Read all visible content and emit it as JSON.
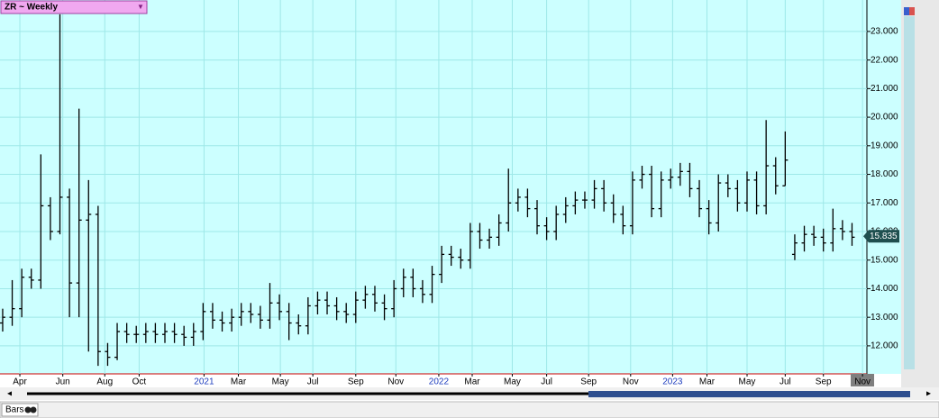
{
  "chart_data": {
    "type": "ohlc",
    "title": "ZR ~ Weekly",
    "x": [
      0,
      1,
      2,
      3,
      4,
      5,
      6,
      7,
      8,
      9,
      10,
      11,
      12,
      13,
      14,
      15,
      16,
      17,
      18,
      19,
      20,
      21,
      22,
      23,
      24,
      25,
      26,
      27,
      28,
      29,
      30,
      31,
      32,
      33,
      34,
      35,
      36,
      37,
      38,
      39,
      40,
      41,
      42,
      43,
      44,
      45,
      46,
      47,
      48,
      49,
      50,
      51,
      52,
      53,
      54,
      55,
      56,
      57,
      58,
      59,
      60,
      61,
      62,
      63,
      64,
      65,
      66,
      67,
      68,
      69,
      70,
      71,
      72,
      73,
      74,
      75,
      76,
      77,
      78,
      79,
      80,
      81,
      82,
      83,
      84,
      85,
      86,
      87,
      88,
      89
    ],
    "open": [
      12.8,
      13.0,
      13.3,
      14.4,
      14.3,
      16.9,
      16.0,
      17.2,
      14.2,
      16.4,
      16.6,
      11.8,
      11.6,
      12.5,
      12.4,
      12.4,
      12.5,
      12.4,
      12.5,
      12.4,
      12.3,
      12.5,
      13.2,
      12.9,
      12.8,
      13.0,
      13.2,
      13.1,
      12.9,
      13.5,
      13.2,
      12.8,
      12.7,
      13.4,
      13.6,
      13.4,
      13.2,
      13.1,
      13.6,
      13.8,
      13.5,
      13.3,
      14.0,
      14.4,
      14.0,
      13.8,
      14.5,
      15.2,
      15.1,
      15.0,
      16.0,
      15.7,
      15.8,
      16.3,
      17.0,
      17.2,
      16.8,
      16.2,
      16.0,
      16.6,
      16.9,
      17.1,
      17.1,
      17.5,
      17.0,
      16.6,
      16.2,
      17.8,
      18.0,
      16.8,
      17.8,
      17.9,
      18.1,
      17.5,
      16.8,
      16.3,
      17.7,
      17.5,
      17.0,
      17.8,
      16.9,
      18.3,
      17.6,
      15.2,
      15.6,
      15.9,
      15.8,
      15.6,
      16.1,
      16.0
    ],
    "high": [
      13.3,
      14.3,
      14.7,
      14.7,
      18.7,
      17.2,
      23.6,
      17.5,
      20.3,
      17.8,
      16.9,
      12.1,
      12.8,
      12.8,
      12.7,
      12.8,
      12.8,
      12.8,
      12.8,
      12.7,
      12.8,
      13.5,
      13.5,
      13.2,
      13.3,
      13.5,
      13.5,
      13.4,
      14.2,
      13.8,
      13.5,
      13.1,
      13.7,
      13.9,
      13.9,
      13.7,
      13.5,
      13.9,
      14.1,
      14.1,
      13.8,
      14.3,
      14.7,
      14.7,
      14.3,
      14.8,
      15.5,
      15.5,
      15.4,
      16.3,
      16.3,
      16.1,
      16.6,
      18.2,
      17.5,
      17.5,
      17.1,
      16.5,
      16.9,
      17.2,
      17.4,
      17.4,
      17.8,
      17.8,
      17.3,
      16.9,
      18.1,
      18.3,
      18.3,
      18.1,
      18.2,
      18.4,
      18.4,
      17.8,
      17.1,
      18.0,
      18.0,
      17.8,
      18.1,
      18.1,
      19.9,
      18.6,
      19.5,
      15.9,
      16.2,
      16.2,
      16.1,
      16.8,
      16.4,
      16.3
    ],
    "low": [
      12.5,
      12.7,
      13.0,
      14.0,
      14.0,
      15.7,
      15.9,
      13.0,
      13.0,
      11.8,
      11.3,
      11.3,
      11.5,
      12.1,
      12.1,
      12.1,
      12.1,
      12.1,
      12.1,
      12.0,
      12.0,
      12.2,
      12.6,
      12.5,
      12.5,
      12.7,
      12.8,
      12.6,
      12.6,
      12.9,
      12.2,
      12.4,
      12.4,
      13.1,
      13.1,
      12.9,
      12.8,
      12.8,
      13.3,
      13.2,
      12.9,
      13.0,
      13.7,
      13.7,
      13.5,
      13.5,
      14.2,
      14.8,
      14.7,
      14.7,
      15.4,
      15.4,
      15.5,
      16.0,
      16.7,
      16.5,
      15.9,
      15.7,
      15.7,
      16.3,
      16.6,
      16.8,
      16.8,
      16.7,
      16.3,
      15.9,
      15.9,
      17.5,
      16.5,
      16.5,
      17.5,
      17.6,
      17.2,
      16.5,
      15.9,
      16.0,
      17.2,
      16.7,
      16.7,
      16.6,
      16.6,
      17.3,
      17.6,
      15.0,
      15.3,
      15.5,
      15.3,
      15.3,
      15.7,
      15.5
    ],
    "close": [
      13.0,
      13.3,
      14.4,
      14.3,
      16.9,
      16.0,
      17.2,
      14.2,
      16.4,
      16.6,
      11.8,
      11.6,
      12.5,
      12.4,
      12.4,
      12.5,
      12.4,
      12.5,
      12.4,
      12.3,
      12.5,
      13.2,
      12.9,
      12.8,
      13.0,
      13.2,
      13.1,
      12.9,
      13.5,
      13.2,
      12.8,
      12.7,
      13.4,
      13.6,
      13.4,
      13.2,
      13.1,
      13.6,
      13.8,
      13.5,
      13.3,
      14.0,
      14.4,
      14.0,
      13.8,
      14.5,
      15.2,
      15.1,
      15.0,
      16.0,
      15.7,
      15.8,
      16.3,
      17.0,
      17.2,
      16.8,
      16.2,
      16.0,
      16.6,
      16.9,
      17.1,
      17.1,
      17.5,
      17.0,
      16.6,
      16.2,
      17.8,
      18.0,
      16.8,
      17.8,
      17.9,
      18.1,
      17.5,
      16.8,
      16.3,
      17.7,
      17.5,
      17.0,
      17.8,
      16.9,
      18.3,
      17.6,
      18.5,
      15.6,
      15.9,
      15.8,
      15.6,
      16.1,
      16.0,
      15.8
    ],
    "color": "#000000",
    "xlim": [
      -0.28,
      90.56
    ],
    "xticks": [
      {
        "value": 1.8,
        "label": "Apr"
      },
      {
        "value": 6.3,
        "label": "Jun"
      },
      {
        "value": 10.7,
        "label": "Aug"
      },
      {
        "value": 14.3,
        "label": "Oct"
      },
      {
        "value": 21.1,
        "label": "2021"
      },
      {
        "value": 24.7,
        "label": "Mar"
      },
      {
        "value": 29.1,
        "label": "May"
      },
      {
        "value": 32.5,
        "label": "Jul"
      },
      {
        "value": 37,
        "label": "Sep"
      },
      {
        "value": 41.2,
        "label": "Nov"
      },
      {
        "value": 45.7,
        "label": "2022"
      },
      {
        "value": 49.2,
        "label": "Mar"
      },
      {
        "value": 53.4,
        "label": "May"
      },
      {
        "value": 57,
        "label": "Jul"
      },
      {
        "value": 61.4,
        "label": "Sep"
      },
      {
        "value": 65.8,
        "label": "Nov"
      },
      {
        "value": 70.2,
        "label": "2023"
      },
      {
        "value": 73.8,
        "label": "Mar"
      },
      {
        "value": 78,
        "label": "May"
      },
      {
        "value": 82,
        "label": "Jul"
      },
      {
        "value": 86,
        "label": "Sep"
      },
      {
        "value": 90.1,
        "label": "Nov"
      }
    ],
    "ylim": [
      11.02,
      24.1
    ],
    "yticks": [
      {
        "value": 12,
        "label": "12.000"
      },
      {
        "value": 13,
        "label": "13.000"
      },
      {
        "value": 14,
        "label": "14.000"
      },
      {
        "value": 15,
        "label": "15.000"
      },
      {
        "value": 16,
        "label": "16.000"
      },
      {
        "value": 17,
        "label": "17.000"
      },
      {
        "value": 18,
        "label": "18.000"
      },
      {
        "value": 19,
        "label": "19.000"
      },
      {
        "value": 20,
        "label": "20.000"
      },
      {
        "value": 21,
        "label": "21.000"
      },
      {
        "value": 22,
        "label": "22.000"
      },
      {
        "value": 23,
        "label": "23.000"
      }
    ],
    "last_price": 15.835,
    "grid": true
  },
  "toolbar": {
    "label": "Bars"
  }
}
